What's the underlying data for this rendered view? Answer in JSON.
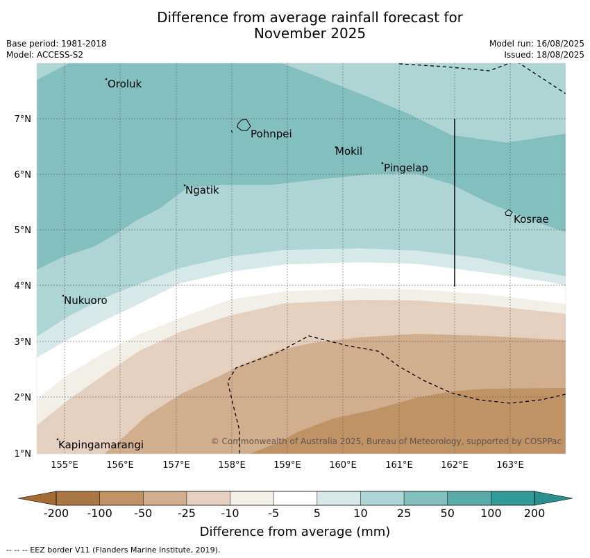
{
  "title": {
    "line1": "Difference from average rainfall forecast for",
    "line2": "November 2025"
  },
  "meta": {
    "base_period": "Base period: 1981-2018",
    "model": "Model: ACCESS-S2",
    "model_run": "Model run: 16/08/2025",
    "issued": "Issued: 18/08/2025"
  },
  "axes": {
    "x_ticks": [
      "155°E",
      "156°E",
      "157°E",
      "158°E",
      "159°E",
      "160°E",
      "161°E",
      "162°E",
      "163°E"
    ],
    "y_ticks": [
      "7°N",
      "6°N",
      "5°N",
      "4°N",
      "3°N",
      "2°N",
      "1°N"
    ]
  },
  "places": [
    {
      "name": "Oroluk"
    },
    {
      "name": "Pohnpei"
    },
    {
      "name": "Mokil"
    },
    {
      "name": "Pingelap"
    },
    {
      "name": "Ngatik"
    },
    {
      "name": "Kosrae"
    },
    {
      "name": "Nukuoro"
    },
    {
      "name": "Kapingamarangi"
    }
  ],
  "copyright": "© Commonwealth of Australia 2025, Bureau of Meteorology, supported by COSPPac",
  "colorbar": {
    "labels": [
      "-200",
      "-100",
      "-50",
      "-25",
      "-10",
      "-5",
      "5",
      "10",
      "25",
      "50",
      "100",
      "200"
    ],
    "colors": [
      "#aa7744",
      "#bf9366",
      "#d1ae8e",
      "#e3d0bf",
      "#f2eee8",
      "#ffffff",
      "#d6e9e8",
      "#acd5d3",
      "#83bfbe",
      "#59abaa",
      "#329999"
    ],
    "extend_low_color": "#a36c35",
    "extend_high_color": "#2a8f8f",
    "title": "Difference from average (mm)"
  },
  "footer": "--  --  -- EEZ border V11 (Flanders Marine Institute, 2019)."
}
